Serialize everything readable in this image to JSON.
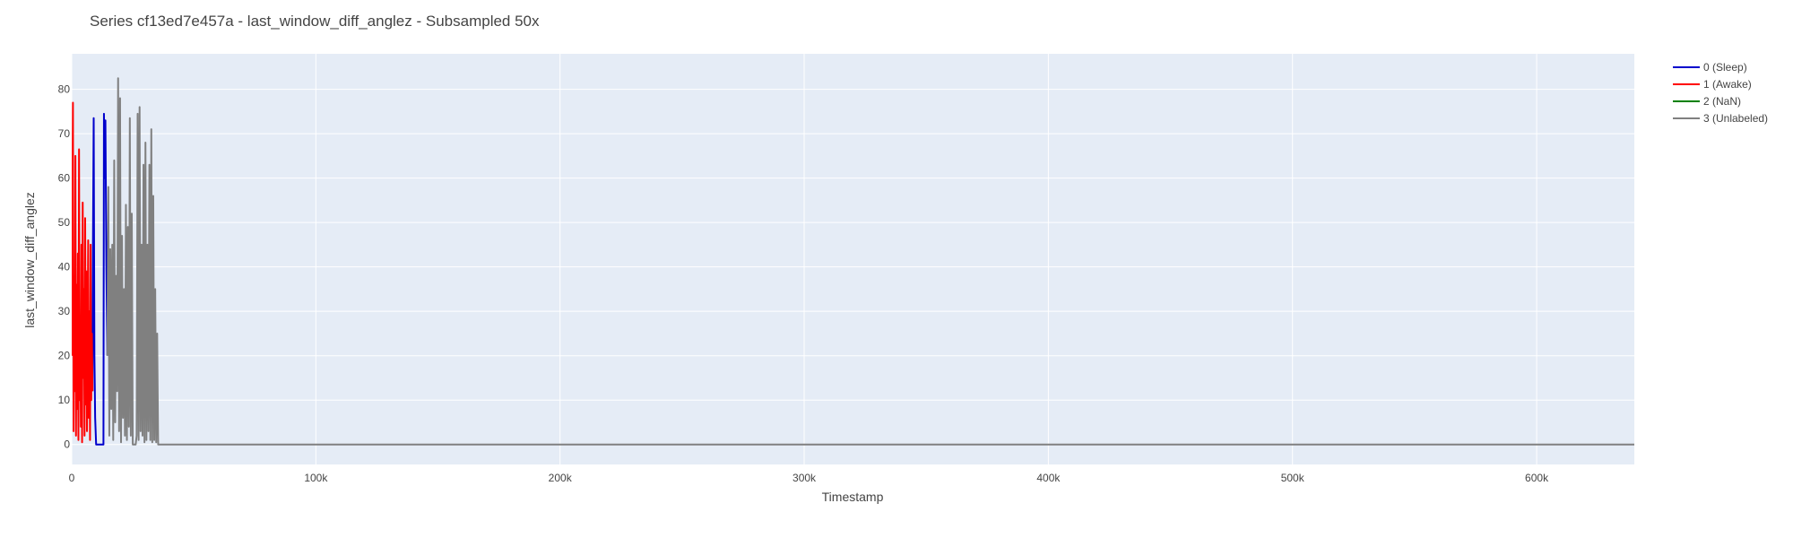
{
  "chart_data": {
    "type": "line",
    "title": "Series cf13ed7e457a - last_window_diff_anglez - Subsampled 50x",
    "xlabel": "Timestamp",
    "ylabel": "last_window_diff_anglez",
    "xlim": [
      0,
      640000
    ],
    "ylim": [
      -4.5,
      88
    ],
    "x_ticks": [
      {
        "value": 0,
        "label": "0"
      },
      {
        "value": 100000,
        "label": "100k"
      },
      {
        "value": 200000,
        "label": "200k"
      },
      {
        "value": 300000,
        "label": "300k"
      },
      {
        "value": 400000,
        "label": "400k"
      },
      {
        "value": 500000,
        "label": "500k"
      },
      {
        "value": 600000,
        "label": "600k"
      }
    ],
    "y_ticks": [
      {
        "value": 0,
        "label": "0"
      },
      {
        "value": 10,
        "label": "10"
      },
      {
        "value": 20,
        "label": "20"
      },
      {
        "value": 30,
        "label": "30"
      },
      {
        "value": 40,
        "label": "40"
      },
      {
        "value": 50,
        "label": "50"
      },
      {
        "value": 60,
        "label": "60"
      },
      {
        "value": 70,
        "label": "70"
      },
      {
        "value": 80,
        "label": "80"
      }
    ],
    "grid": true,
    "legend_position": "right",
    "plot_background": "#e5ecf6",
    "series": [
      {
        "name": "0 (Sleep)",
        "color": "#0000cc",
        "x": [
          8500,
          8700,
          9000,
          9300,
          9600,
          10000,
          13000,
          13200,
          13500,
          13800,
          14200,
          14600
        ],
        "y": [
          12,
          45,
          73.5,
          20,
          6,
          0,
          0,
          74.5,
          60,
          73,
          40,
          20
        ]
      },
      {
        "name": "1 (Awake)",
        "color": "#ff0000",
        "x": [
          0,
          250,
          500,
          750,
          1000,
          1250,
          1500,
          1750,
          2000,
          2250,
          2500,
          2750,
          3000,
          3250,
          3500,
          3750,
          4000,
          4250,
          4500,
          4750,
          5000,
          5250,
          5500,
          5750,
          6000,
          6250,
          6500,
          6750,
          7000,
          7250,
          7500,
          7750,
          8000,
          8250,
          8500
        ],
        "y": [
          20,
          48,
          77,
          3,
          38,
          12,
          65,
          2,
          36,
          8,
          43,
          1,
          66.5,
          10,
          28,
          4,
          45,
          0.5,
          54.5,
          15,
          35,
          2,
          51,
          9,
          39,
          3,
          22,
          46,
          6,
          30,
          1,
          45,
          10,
          25,
          12
        ]
      },
      {
        "name": "2 (NaN)",
        "color": "#008000",
        "x": [],
        "y": []
      },
      {
        "name": "3 (Unlabeled)",
        "color": "#808080",
        "x": [
          14600,
          15000,
          15400,
          15800,
          16200,
          16600,
          17000,
          17400,
          17800,
          18200,
          18600,
          19000,
          19400,
          19800,
          20200,
          20600,
          21000,
          21400,
          21800,
          22200,
          22600,
          23000,
          23400,
          23800,
          24200,
          24600,
          25000,
          25400,
          25800,
          26200,
          26600,
          27000,
          27400,
          27800,
          28200,
          28600,
          29000,
          29400,
          29800,
          30200,
          30600,
          31000,
          31400,
          31800,
          32200,
          32600,
          33000,
          33400,
          33800,
          34200,
          34600,
          35000,
          35400,
          35800,
          36200,
          36600,
          37000,
          37400,
          37800,
          38200,
          38600,
          39000,
          39400,
          39800,
          40000,
          40200,
          640000
        ],
        "y": [
          20,
          58,
          2,
          44,
          8,
          45,
          1,
          64,
          5,
          38,
          12,
          82.5,
          3,
          78,
          0.5,
          47,
          6,
          35,
          2,
          54,
          1,
          49,
          4,
          73.5,
          2,
          52,
          0,
          0,
          0,
          0,
          2,
          74.5,
          1,
          76,
          3,
          45,
          2,
          63,
          0.5,
          68,
          1,
          45,
          3,
          63,
          1,
          71,
          0.5,
          56,
          1,
          35,
          0.5,
          25,
          0,
          0,
          0,
          0,
          0,
          0,
          0,
          0,
          0,
          0,
          0,
          0,
          0,
          0,
          0
        ]
      }
    ]
  }
}
